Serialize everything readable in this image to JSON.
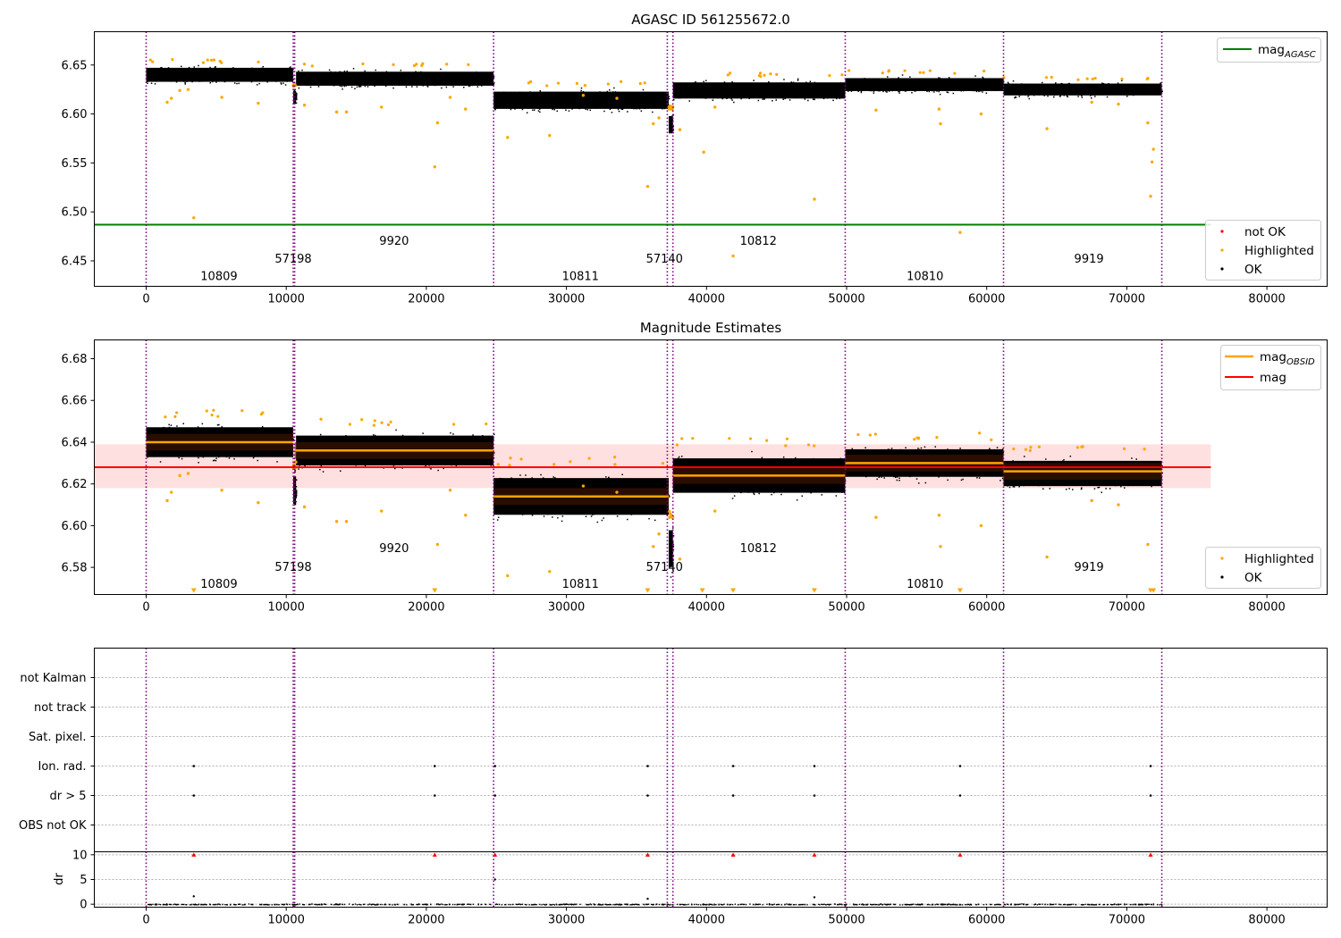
{
  "chart_data": [
    {
      "type": "scatter",
      "title": "AGASC ID 561255672.0",
      "xlim": [
        -3700,
        84300
      ],
      "ylim": [
        6.424,
        6.684
      ],
      "x_ticks": [
        0,
        10000,
        20000,
        30000,
        40000,
        50000,
        60000,
        70000,
        80000
      ],
      "y_ticks": [
        6.45,
        6.5,
        6.55,
        6.6,
        6.65
      ],
      "obs_boundaries": [
        0,
        10500,
        10600,
        24800,
        37200,
        37600,
        49900,
        61200,
        72500
      ],
      "obs_labels": [
        {
          "text": "10809",
          "x": 5200,
          "y": 6.434
        },
        {
          "text": "57198",
          "x": 10500,
          "y": 6.452
        },
        {
          "text": "9920",
          "x": 17700,
          "y": 6.47
        },
        {
          "text": "10811",
          "x": 31000,
          "y": 6.434
        },
        {
          "text": "57140",
          "x": 37000,
          "y": 6.452
        },
        {
          "text": "10812",
          "x": 43700,
          "y": 6.47
        },
        {
          "text": "10810",
          "x": 55600,
          "y": 6.434
        },
        {
          "text": "9919",
          "x": 67300,
          "y": 6.452
        }
      ],
      "segments": [
        {
          "x0": 0,
          "x1": 10500,
          "mean": 6.64,
          "spread": 0.013
        },
        {
          "x0": 10500,
          "x1": 10700,
          "mean": 6.617,
          "spread": 0.012
        },
        {
          "x0": 10700,
          "x1": 24800,
          "mean": 6.636,
          "spread": 0.013
        },
        {
          "x0": 24800,
          "x1": 37300,
          "mean": 6.614,
          "spread": 0.016
        },
        {
          "x0": 37300,
          "x1": 37600,
          "mean": 6.589,
          "spread": 0.016
        },
        {
          "x0": 37600,
          "x1": 49900,
          "mean": 6.624,
          "spread": 0.015
        },
        {
          "x0": 49900,
          "x1": 61200,
          "mean": 6.63,
          "spread": 0.012
        },
        {
          "x0": 61200,
          "x1": 72500,
          "mean": 6.625,
          "spread": 0.011
        }
      ],
      "series": [
        {
          "name": "mag",
          "subscript": "AGASC",
          "kind": "hline",
          "y": 6.487,
          "x_range": [
            -3700,
            76000
          ],
          "color": "#008000"
        },
        {
          "name": "not OK",
          "kind": "scatter",
          "color": "#ff0000",
          "points": []
        },
        {
          "name": "Highlighted",
          "kind": "scatter",
          "color": "#ffa500",
          "points": [
            [
              3400,
              6.494
            ],
            [
              20600,
              6.546
            ],
            [
              35800,
              6.526
            ],
            [
              41900,
              6.455
            ],
            [
              47700,
              6.513
            ],
            [
              58100,
              6.479
            ],
            [
              71700,
              6.516
            ],
            [
              71800,
              6.551
            ],
            [
              71900,
              6.564
            ],
            [
              71500,
              6.591
            ],
            [
              39800,
              6.561
            ],
            [
              38100,
              6.584
            ],
            [
              36200,
              6.59
            ],
            [
              36600,
              6.596
            ],
            [
              25800,
              6.576
            ],
            [
              28800,
              6.578
            ],
            [
              20800,
              6.591
            ],
            [
              56700,
              6.59
            ],
            [
              64300,
              6.585
            ],
            [
              59600,
              6.6
            ],
            [
              52100,
              6.604
            ],
            [
              1500,
              6.612
            ],
            [
              1800,
              6.616
            ],
            [
              2400,
              6.624
            ],
            [
              3000,
              6.625
            ],
            [
              5400,
              6.617
            ],
            [
              8000,
              6.611
            ],
            [
              11300,
              6.609
            ],
            [
              13600,
              6.602
            ],
            [
              14300,
              6.602
            ],
            [
              16800,
              6.607
            ],
            [
              21700,
              6.617
            ],
            [
              22800,
              6.605
            ],
            [
              31200,
              6.619
            ],
            [
              33600,
              6.616
            ],
            [
              40600,
              6.607
            ],
            [
              56600,
              6.605
            ],
            [
              67500,
              6.612
            ],
            [
              69400,
              6.61
            ]
          ]
        },
        {
          "name": "OK",
          "kind": "scatter",
          "color": "#000000",
          "points": "dense band, see segments"
        }
      ],
      "legend_upper": "top-right",
      "legend_lower": "bottom-right"
    },
    {
      "type": "scatter",
      "title": "Magnitude Estimates",
      "xlim": [
        -3700,
        84300
      ],
      "ylim": [
        6.567,
        6.689
      ],
      "x_ticks": [
        0,
        10000,
        20000,
        30000,
        40000,
        50000,
        60000,
        70000,
        80000
      ],
      "y_ticks": [
        6.58,
        6.6,
        6.62,
        6.64,
        6.66,
        6.68
      ],
      "mag": {
        "value": 6.628,
        "band": [
          6.618,
          6.639
        ],
        "x_range": [
          -3700,
          76000
        ],
        "color": "#ff0000"
      },
      "obs_labels": [
        {
          "text": "10809",
          "x": 5200,
          "y": 6.572
        },
        {
          "text": "57198",
          "x": 10500,
          "y": 6.58
        },
        {
          "text": "9920",
          "x": 17700,
          "y": 6.589
        },
        {
          "text": "10811",
          "x": 31000,
          "y": 6.572
        },
        {
          "text": "57140",
          "x": 37000,
          "y": 6.58
        },
        {
          "text": "10812",
          "x": 43700,
          "y": 6.589
        },
        {
          "text": "10810",
          "x": 55600,
          "y": 6.572
        },
        {
          "text": "9919",
          "x": 67300,
          "y": 6.58
        }
      ],
      "obsid_means": [
        {
          "x0": 0,
          "x1": 10500,
          "y": 6.64
        },
        {
          "x0": 10600,
          "x1": 24800,
          "y": 6.636
        },
        {
          "x0": 24800,
          "x1": 37300,
          "y": 6.614
        },
        {
          "x0": 37600,
          "x1": 49900,
          "y": 6.624
        },
        {
          "x0": 49900,
          "x1": 61200,
          "y": 6.63
        },
        {
          "x0": 61200,
          "x1": 72500,
          "y": 6.626
        }
      ],
      "out_of_range_markers": [
        3400,
        20600,
        35800,
        39700,
        41900,
        47700,
        58100,
        71700,
        71900
      ],
      "series": [
        {
          "name": "mag",
          "subscript": "OBSID",
          "color": "#ffa500"
        },
        {
          "name": "mag",
          "color": "#ff0000"
        },
        {
          "name": "Highlighted",
          "color": "#ffa500"
        },
        {
          "name": "OK",
          "color": "#000000"
        }
      ],
      "legend_upper": "top-right",
      "legend_lower": "bottom-right"
    },
    {
      "type": "scatter",
      "title": "",
      "xlim": [
        -3700,
        84300
      ],
      "x_ticks": [
        0,
        10000,
        20000,
        30000,
        40000,
        50000,
        60000,
        70000,
        80000
      ],
      "flag_categories": [
        "not Kalman",
        "not track",
        "Sat. pixel.",
        "Ion. rad.",
        "dr > 5",
        "OBS not OK"
      ],
      "flag_points": [
        {
          "flag": "Ion. rad.",
          "x": [
            3400,
            20600,
            24900,
            35800,
            41900,
            47700,
            58100,
            71700
          ]
        },
        {
          "flag": "dr > 5",
          "x": [
            3400,
            20600,
            24900,
            35800,
            41900,
            47700,
            58100,
            71700
          ]
        }
      ],
      "dr": {
        "ylabel": "dr",
        "y_ticks": [
          0,
          5,
          10
        ],
        "ylim": [
          -0.6,
          10.6
        ],
        "clipped_at_10": [
          3400,
          20600,
          24900,
          35800,
          41900,
          47700,
          58100,
          71700
        ],
        "other_points": [
          [
            3400,
            1.6
          ],
          [
            24900,
            5.0
          ],
          [
            47700,
            1.4
          ],
          [
            35800,
            1.1
          ]
        ]
      }
    }
  ]
}
